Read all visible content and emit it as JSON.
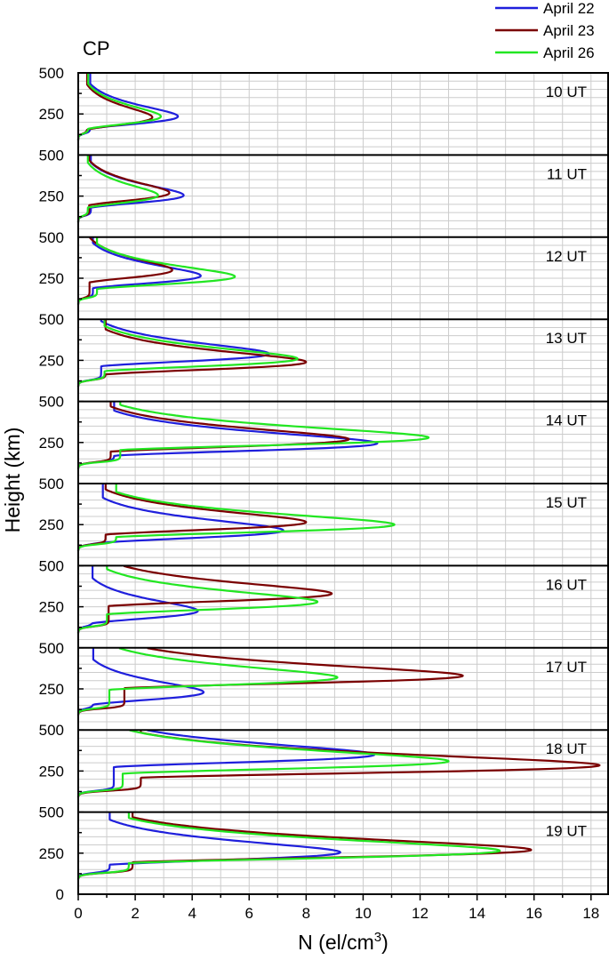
{
  "chart_data": {
    "type": "line",
    "site_label": "CP",
    "xlabel_main": "N (el/cm",
    "xlabel_sup": "3",
    "xlabel_close": ")",
    "ylabel": "Height (km)",
    "xlim": [
      0,
      18.6
    ],
    "ylim": [
      0,
      500
    ],
    "x_ticks": [
      "0",
      "2",
      "4",
      "6",
      "8",
      "10",
      "12",
      "14",
      "16",
      "18"
    ],
    "y_ticks": [
      "500",
      "250"
    ],
    "y_tick_bottom": "0",
    "grid": true,
    "legend": {
      "placement": "top-right",
      "entries": [
        {
          "name": "April 22",
          "color": "#1f1fdc"
        },
        {
          "name": "April 23",
          "color": "#7a0000"
        },
        {
          "name": "April 26",
          "color": "#22e622"
        }
      ]
    },
    "series_colors": [
      "#1f1fdc",
      "#7a0000",
      "#22e622"
    ],
    "panels": [
      {
        "label": "10 UT",
        "series": [
          {
            "name": "April 22",
            "peak_n": 3.5,
            "peak_h": 235
          },
          {
            "name": "April 23",
            "peak_n": 2.6,
            "peak_h": 230
          },
          {
            "name": "April 26",
            "peak_n": 2.9,
            "peak_h": 235
          }
        ]
      },
      {
        "label": "11 UT",
        "series": [
          {
            "name": "April 22",
            "peak_n": 3.7,
            "peak_h": 255
          },
          {
            "name": "April 23",
            "peak_n": 3.2,
            "peak_h": 270
          },
          {
            "name": "April 26",
            "peak_n": 2.8,
            "peak_h": 255
          }
        ]
      },
      {
        "label": "12 UT",
        "series": [
          {
            "name": "April 22",
            "peak_n": 4.3,
            "peak_h": 265
          },
          {
            "name": "April 23",
            "peak_n": 3.3,
            "peak_h": 300
          },
          {
            "name": "April 26",
            "peak_n": 5.5,
            "peak_h": 260
          }
        ]
      },
      {
        "label": "13 UT",
        "series": [
          {
            "name": "April 22",
            "peak_n": 6.7,
            "peak_h": 290
          },
          {
            "name": "April 23",
            "peak_n": 8.0,
            "peak_h": 240
          },
          {
            "name": "April 26",
            "peak_n": 7.7,
            "peak_h": 260
          }
        ]
      },
      {
        "label": "14 UT",
        "series": [
          {
            "name": "April 22",
            "peak_n": 10.5,
            "peak_h": 245
          },
          {
            "name": "April 23",
            "peak_n": 9.5,
            "peak_h": 270
          },
          {
            "name": "April 26",
            "peak_n": 12.3,
            "peak_h": 280
          }
        ]
      },
      {
        "label": "15 UT",
        "series": [
          {
            "name": "April 22",
            "peak_n": 7.2,
            "peak_h": 215
          },
          {
            "name": "April 23",
            "peak_n": 8.0,
            "peak_h": 265
          },
          {
            "name": "April 26",
            "peak_n": 11.1,
            "peak_h": 250
          }
        ]
      },
      {
        "label": "16 UT",
        "series": [
          {
            "name": "April 22",
            "peak_n": 4.2,
            "peak_h": 225
          },
          {
            "name": "April 23",
            "peak_n": 8.9,
            "peak_h": 330
          },
          {
            "name": "April 26",
            "peak_n": 8.4,
            "peak_h": 280
          }
        ]
      },
      {
        "label": "17 UT",
        "series": [
          {
            "name": "April 22",
            "peak_n": 4.4,
            "peak_h": 230
          },
          {
            "name": "April 23",
            "peak_n": 13.5,
            "peak_h": 330
          },
          {
            "name": "April 26",
            "peak_n": 9.1,
            "peak_h": 320
          }
        ]
      },
      {
        "label": "18 UT",
        "series": [
          {
            "name": "April 22",
            "peak_n": 10.4,
            "peak_h": 350
          },
          {
            "name": "April 23",
            "peak_n": 18.3,
            "peak_h": 285
          },
          {
            "name": "April 26",
            "peak_n": 13.0,
            "peak_h": 310
          }
        ]
      },
      {
        "label": "19 UT",
        "series": [
          {
            "name": "April 22",
            "peak_n": 9.2,
            "peak_h": 255
          },
          {
            "name": "April 23",
            "peak_n": 15.9,
            "peak_h": 270
          },
          {
            "name": "April 26",
            "peak_n": 14.8,
            "peak_h": 265
          }
        ]
      }
    ]
  }
}
